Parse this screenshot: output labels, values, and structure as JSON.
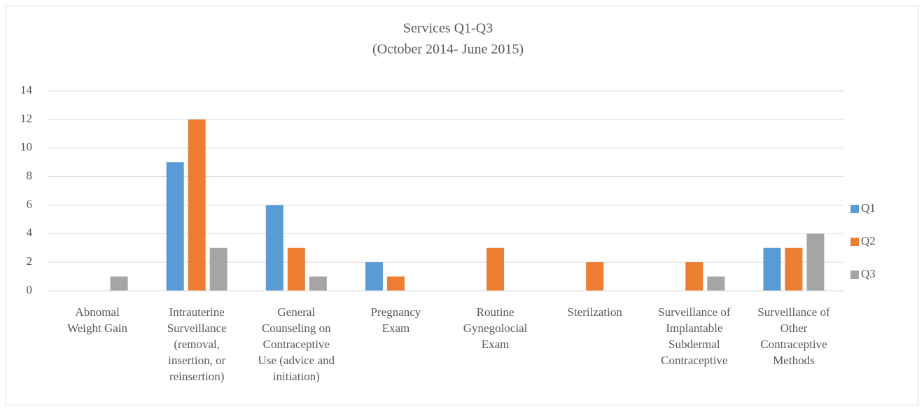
{
  "chart_data": {
    "type": "bar",
    "title": [
      "Services Q1-Q3",
      "(October 2014- June 2015)"
    ],
    "categories": [
      "Abnomal Weight Gain",
      "Intrauterine Surveillance (removal, insertion, or reinsertion)",
      "General Counseling on Contraceptive Use (advice and initiation)",
      "Pregnancy Exam",
      "Routine Gynegolocial Exam",
      "Sterilzation",
      "Surveillance of Implantable Subdermal Contraceptive",
      "Surveillance of Other Contraceptive Methods"
    ],
    "series": [
      {
        "name": "Q1",
        "color": "#5b9bd5",
        "values": [
          0,
          9,
          6,
          2,
          0,
          0,
          0,
          3
        ]
      },
      {
        "name": "Q2",
        "color": "#ed7d31",
        "values": [
          0,
          12,
          3,
          1,
          3,
          2,
          2,
          3
        ]
      },
      {
        "name": "Q3",
        "color": "#a5a5a5",
        "values": [
          1,
          3,
          1,
          0,
          0,
          0,
          1,
          4
        ]
      }
    ],
    "ylim": [
      0,
      14
    ],
    "yticks": [
      0,
      2,
      4,
      6,
      8,
      10,
      12,
      14
    ],
    "grid": true,
    "legend": "right"
  }
}
